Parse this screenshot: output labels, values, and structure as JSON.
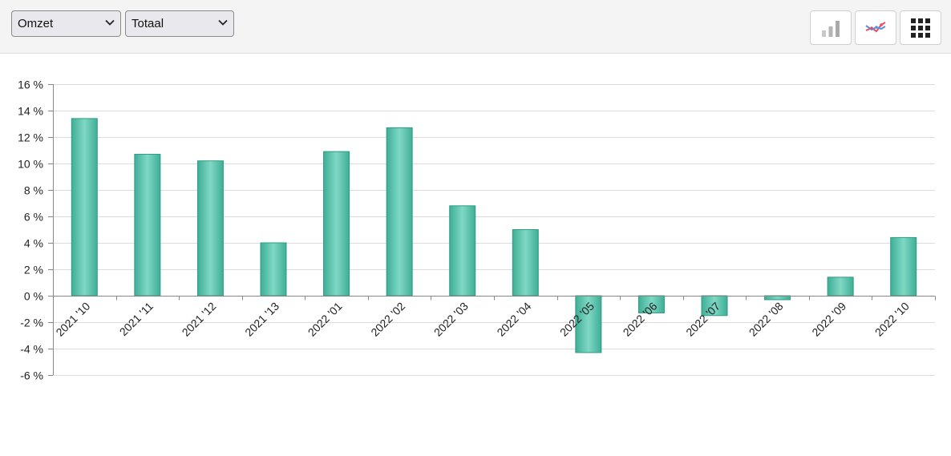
{
  "toolbar": {
    "metric_select": {
      "value": "Omzet"
    },
    "aggregate_select": {
      "value": "Totaal"
    },
    "buttons": [
      {
        "icon": "bar-chart-icon"
      },
      {
        "icon": "line-chart-icon"
      },
      {
        "icon": "grid-icon"
      }
    ]
  },
  "colors": {
    "bar_fill": "#5cc7b0",
    "bar_stroke": "#2e9c84",
    "gridline": "#dddddd",
    "axis": "#888888"
  },
  "chart_data": {
    "type": "bar",
    "categories": [
      "2021 '10",
      "2021 '11",
      "2021 '12",
      "2021 '13",
      "2022 '01",
      "2022 '02",
      "2022 '03",
      "2022 '04",
      "2022 '05",
      "2022 '06",
      "2022 '07",
      "2022 '08",
      "2022 '09",
      "2022 '10"
    ],
    "values": [
      13.4,
      10.7,
      10.2,
      4.0,
      10.9,
      12.7,
      6.8,
      5.0,
      -4.3,
      -1.3,
      -1.5,
      -0.3,
      1.4,
      4.4
    ],
    "ylim": [
      -6,
      16
    ],
    "yticks": [
      16,
      14,
      12,
      10,
      8,
      6,
      4,
      2,
      0,
      -2,
      -4,
      -6
    ],
    "ytick_labels": [
      "16 %",
      "14 %",
      "12 %",
      "10 %",
      "8 %",
      "6 %",
      "4 %",
      "2 %",
      "0 %",
      "-2 %",
      "-4 %",
      "-6 %"
    ],
    "grid": true,
    "legend": "none"
  }
}
